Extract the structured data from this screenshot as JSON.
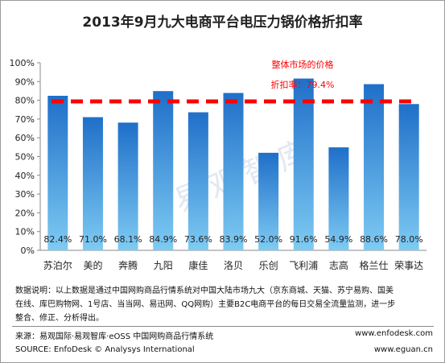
{
  "chart_data": {
    "type": "bar",
    "title": "2013年9月九大电商平台电压力锅价格折扣率",
    "categories": [
      "苏泊尔",
      "美的",
      "奔腾",
      "九阳",
      "康佳",
      "洛贝",
      "乐创",
      "飞利浦",
      "志高",
      "格兰仕",
      "荣事达"
    ],
    "values": [
      82.4,
      71.0,
      68.1,
      84.9,
      73.6,
      83.9,
      52.0,
      91.6,
      54.9,
      88.6,
      78.0
    ],
    "value_labels": [
      "82.4%",
      "71.0%",
      "68.1%",
      "84.9%",
      "73.6%",
      "83.9%",
      "52.0%",
      "91.6%",
      "54.9%",
      "88.6%",
      "78.0%"
    ],
    "ylim": [
      0,
      100
    ],
    "yticks": [
      "0%",
      "10%",
      "20%",
      "30%",
      "40%",
      "50%",
      "60%",
      "70%",
      "80%",
      "90%",
      "100%"
    ],
    "xlabel": "",
    "ylabel": "",
    "grid": false,
    "reference_line": {
      "value": 79.4,
      "label_line1": "整体市场的价格",
      "label_line2": "折扣率：79.4%",
      "color": "#ff0000"
    },
    "bar_color_top": "#1f6fc9",
    "bar_color_bottom": "#7ecbf3"
  },
  "watermark": "易观智库",
  "notes": {
    "line1": "数据说明：以上数据是通过中国网购商品行情系统对中国大陆市场九大（京东商城、天猫、苏宁易购、国美",
    "line2": "在线、库巴购物网、1号店、当当网、易迅网、QQ网购）主要B2C电商平台的每日交易全流量监测，进一步",
    "line3": "整合、修正、分析得出。"
  },
  "footer": {
    "source_cn": "来源：易观国际·易观智库·eOSS 中国网购商品行情系统",
    "site1": "www.enfodesk.com",
    "source_en": "SOURCE: EnfoDesk © Analysys International",
    "site2": "www.eguan.cn"
  }
}
